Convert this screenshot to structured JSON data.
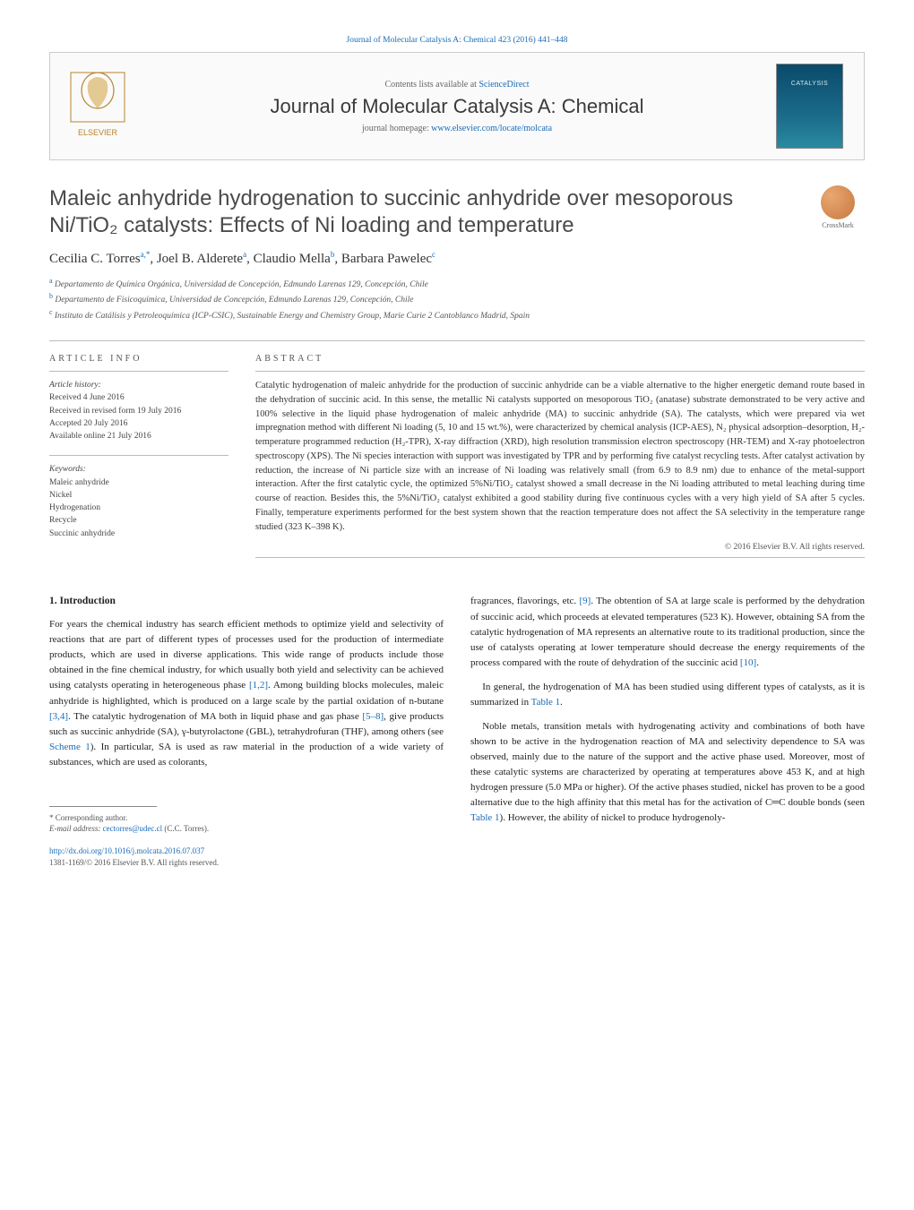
{
  "header": {
    "contents_line_prefix": "Contents lists available at ",
    "contents_link": "ScienceDirect",
    "running_head": "Journal of Molecular Catalysis A: Chemical 423 (2016) 441–448",
    "journal_name": "Journal of Molecular Catalysis A: Chemical",
    "homepage_prefix": "journal homepage: ",
    "homepage_url": "www.elsevier.com/locate/molcata"
  },
  "crossmark_label": "CrossMark",
  "title": "Maleic anhydride hydrogenation to succinic anhydride over mesoporous Ni/TiO₂ catalysts: Effects of Ni loading and temperature",
  "authors_html": "Cecilia C. Torres<sup>a,*</sup>, Joel B. Alderete<sup>a</sup>, Claudio Mella<sup>b</sup>, Barbara Pawelec<sup>c</sup>",
  "affiliations": [
    "Departamento de Química Orgánica, Universidad de Concepción, Edmundo Larenas 129, Concepción, Chile",
    "Departamento de Fisicoquímica, Universidad de Concepción, Edmundo Larenas 129, Concepción, Chile",
    "Instituto de Catálisis y Petroleoquímica (ICP-CSIC), Sustainable Energy and Chemistry Group, Marie Curie 2 Cantoblanco Madrid, Spain"
  ],
  "affil_markers": [
    "a",
    "b",
    "c"
  ],
  "info": {
    "heading": "ARTICLE INFO",
    "history_label": "Article history:",
    "history": [
      "Received 4 June 2016",
      "Received in revised form 19 July 2016",
      "Accepted 20 July 2016",
      "Available online 21 July 2016"
    ],
    "keywords_label": "Keywords:",
    "keywords": [
      "Maleic anhydride",
      "Nickel",
      "Hydrogenation",
      "Recycle",
      "Succinic anhydride"
    ]
  },
  "abstract": {
    "heading": "ABSTRACT",
    "text": "Catalytic hydrogenation of maleic anhydride for the production of succinic anhydride can be a viable alternative to the higher energetic demand route based in the dehydration of succinic acid. In this sense, the metallic Ni catalysts supported on mesoporous TiO₂ (anatase) substrate demonstrated to be very active and 100% selective in the liquid phase hydrogenation of maleic anhydride (MA) to succinic anhydride (SA). The catalysts, which were prepared via wet impregnation method with different Ni loading (5, 10 and 15 wt.%), were characterized by chemical analysis (ICP-AES), N₂ physical adsorption–desorption, H₂-temperature programmed reduction (H₂-TPR), X-ray diffraction (XRD), high resolution transmission electron spectroscopy (HR-TEM) and X-ray photoelectron spectroscopy (XPS). The Ni species interaction with support was investigated by TPR and by performing five catalyst recycling tests. After catalyst activation by reduction, the increase of Ni particle size with an increase of Ni loading was relatively small (from 6.9 to 8.9 nm) due to enhance of the metal-support interaction. After the first catalytic cycle, the optimized 5%Ni/TiO₂ catalyst showed a small decrease in the Ni loading attributed to metal leaching during time course of reaction. Besides this, the 5%Ni/TiO₂ catalyst exhibited a good stability during five continuous cycles with a very high yield of SA after 5 cycles. Finally, temperature experiments performed for the best system shown that the reaction temperature does not affect the SA selectivity in the temperature range studied (323 K–398 K).",
    "copyright": "© 2016 Elsevier B.V. All rights reserved."
  },
  "body": {
    "section1_heading": "1. Introduction",
    "p1": "For years the chemical industry has search efficient methods to optimize yield and selectivity of reactions that are part of different types of processes used for the production of intermediate products, which are used in diverse applications. This wide range of products include those obtained in the fine chemical industry, for which usually both yield and selectivity can be achieved using catalysts operating in heterogeneous phase ",
    "p1_cite1": "[1,2]",
    "p1_cont": ". Among building blocks molecules, maleic anhydride is highlighted, which is produced on a large scale by the partial oxidation of n-butane ",
    "p1_cite2": "[3,4]",
    "p1_end": ". The catalytic hydrogenation of MA both in liquid phase and gas phase ",
    "p1_cite3": "[5–8]",
    "p1_tail": ", give products such as succinic anhydride (SA), γ-butyrolactone (GBL), tetrahydrofuran (THF), among others (see ",
    "p1_scheme": "Scheme 1",
    "p1_final": "). In particular, SA is used as raw material in the production of a wide variety of substances, which are used as colorants,",
    "p2": "fragrances, flavorings, etc. ",
    "p2_cite": "[9]",
    "p2_cont": ". The obtention of SA at large scale is performed by the dehydration of succinic acid, which proceeds at elevated temperatures (523 K). However, obtaining SA from the catalytic hydrogenation of MA represents an alternative route to its traditional production, since the use of catalysts operating at lower temperature should decrease the energy requirements of the process compared with the route of dehydration of the succinic acid ",
    "p2_cite2": "[10]",
    "p2_end": ".",
    "p3": "In general, the hydrogenation of MA has been studied using different types of catalysts, as it is summarized in ",
    "p3_table": "Table 1",
    "p3_end": ".",
    "p4": "Noble metals, transition metals with hydrogenating activity and combinations of both have shown to be active in the hydrogenation reaction of MA and selectivity dependence to SA was observed, mainly due to the nature of the support and the active phase used. Moreover, most of these catalytic systems are characterized by operating at temperatures above 453 K, and at high hydrogen pressure (5.0 MPa or higher). Of the active phases studied, nickel has proven to be a good alternative due to the high affinity that this metal has for the activation of C═C double bonds (seen ",
    "p4_table": "Table 1",
    "p4_end": "). However, the ability of nickel to produce hydrogenoly-"
  },
  "footer": {
    "corr_marker": "* Corresponding author.",
    "email_label": "E-mail address: ",
    "email": "cectorres@udec.cl",
    "email_paren": " (C.C. Torres).",
    "doi_url": "http://dx.doi.org/10.1016/j.molcata.2016.07.037",
    "issn_line": "1381-1169/© 2016 Elsevier B.V. All rights reserved."
  },
  "colors": {
    "link": "#1a6bb8",
    "text": "#1a1a1a",
    "muted": "#666",
    "cover_top": "#0a4a6a",
    "cover_bottom": "#2a8aa0",
    "crossmark_a": "#e8a870",
    "crossmark_b": "#c87840"
  }
}
